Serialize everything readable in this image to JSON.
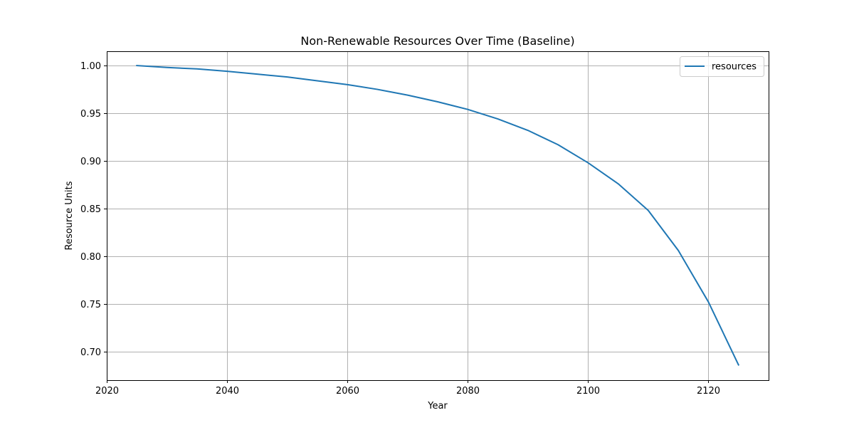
{
  "chart_data": {
    "type": "line",
    "title": "Non-Renewable Resources Over Time (Baseline)",
    "xlabel": "Year",
    "ylabel": "Resource Units",
    "xlim": [
      2020,
      2130
    ],
    "ylim": [
      0.67,
      1.015
    ],
    "x_ticks": [
      2020,
      2040,
      2060,
      2080,
      2100,
      2120
    ],
    "y_ticks": [
      0.7,
      0.75,
      0.8,
      0.85,
      0.9,
      0.95,
      1.0
    ],
    "y_tick_decimals": 2,
    "grid": true,
    "legend": {
      "placement": "top-right",
      "entries": [
        "resources"
      ]
    },
    "series": [
      {
        "name": "resources",
        "color": "#1f77b4",
        "x": [
          2025,
          2030,
          2035,
          2040,
          2045,
          2050,
          2055,
          2060,
          2065,
          2070,
          2075,
          2080,
          2085,
          2090,
          2095,
          2100,
          2105,
          2110,
          2115,
          2120,
          2125
        ],
        "y": [
          1.0,
          0.998,
          0.9965,
          0.994,
          0.991,
          0.988,
          0.984,
          0.98,
          0.975,
          0.969,
          0.962,
          0.954,
          0.944,
          0.932,
          0.917,
          0.898,
          0.876,
          0.848,
          0.806,
          0.752,
          0.686
        ]
      }
    ]
  }
}
